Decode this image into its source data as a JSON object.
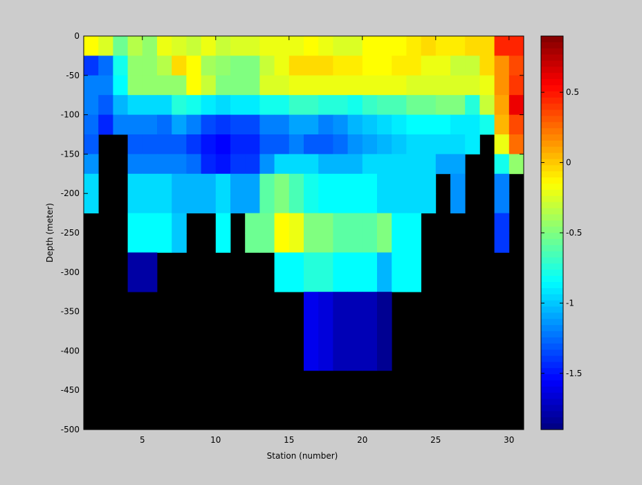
{
  "chart_data": {
    "type": "heatmap",
    "title": "",
    "xlabel": "Station (number)",
    "ylabel": "Depth (meter)",
    "xlim": [
      1,
      31
    ],
    "ylim": [
      -500,
      0
    ],
    "x_ticks": [
      5,
      10,
      15,
      20,
      25,
      30
    ],
    "y_ticks": [
      0,
      -50,
      -100,
      -150,
      -200,
      -250,
      -300,
      -350,
      -400,
      -450,
      -500
    ],
    "colorbar": {
      "range": [
        -1.9,
        0.9
      ],
      "ticks": [
        0.5,
        0,
        -0.5,
        -1,
        -1.5
      ],
      "colormap": "jet"
    },
    "no_data_color": "#000000",
    "grid": false,
    "x_stations": [
      1,
      2,
      3,
      4,
      5,
      6,
      7,
      8,
      9,
      10,
      11,
      12,
      13,
      14,
      15,
      16,
      17,
      18,
      19,
      20,
      21,
      22,
      23,
      24,
      25,
      26,
      27,
      28,
      29,
      30,
      31
    ],
    "depth_bins": [
      -5,
      -25,
      -50,
      -75,
      -100,
      -125,
      -150,
      -175,
      -200,
      -225,
      -250,
      -275,
      -300,
      -325,
      -350,
      -375,
      -400,
      -425,
      -450,
      -475,
      -500
    ],
    "values": [
      [
        -0.15,
        -0.25,
        -0.55,
        -0.35,
        -0.45,
        -0.2,
        -0.25,
        -0.3,
        -0.2,
        -0.3,
        -0.25,
        -0.25,
        -0.2,
        -0.2,
        -0.2,
        -0.15,
        -0.2,
        -0.25,
        -0.25,
        -0.15,
        -0.15,
        -0.15,
        -0.1,
        -0.05,
        -0.1,
        -0.1,
        -0.05,
        -0.05,
        0.45,
        0.45,
        0.45
      ],
      [
        -1.4,
        -1.25,
        -0.8,
        -0.45,
        -0.45,
        -0.35,
        -0.05,
        -0.15,
        -0.4,
        -0.45,
        -0.5,
        -0.5,
        -0.3,
        -0.2,
        -0.05,
        -0.05,
        -0.05,
        -0.1,
        -0.1,
        -0.15,
        -0.15,
        -0.1,
        -0.1,
        -0.2,
        -0.2,
        -0.3,
        -0.3,
        -0.05,
        0.15,
        0.35,
        0.45
      ],
      [
        -1.2,
        -1.2,
        -0.85,
        -0.45,
        -0.45,
        -0.45,
        -0.45,
        -0.15,
        -0.3,
        -0.5,
        -0.5,
        -0.5,
        -0.25,
        -0.25,
        -0.2,
        -0.2,
        -0.2,
        -0.2,
        -0.2,
        -0.2,
        -0.2,
        -0.2,
        -0.25,
        -0.25,
        -0.25,
        -0.25,
        -0.25,
        -0.2,
        0.15,
        0.4,
        0.4
      ],
      [
        -1.2,
        -1.3,
        -1.05,
        -0.95,
        -0.95,
        -0.95,
        -0.75,
        -0.8,
        -0.9,
        -0.95,
        -0.9,
        -0.9,
        -0.8,
        -0.8,
        -0.7,
        -0.7,
        -0.75,
        -0.75,
        -0.8,
        -0.7,
        -0.65,
        -0.65,
        -0.55,
        -0.55,
        -0.5,
        -0.5,
        -0.75,
        -0.3,
        0.1,
        0.6,
        0.5
      ],
      [
        -1.25,
        -1.45,
        -1.2,
        -1.2,
        -1.2,
        -1.25,
        -1.1,
        -1.2,
        -1.35,
        -1.4,
        -1.35,
        -1.35,
        -1.2,
        -1.2,
        -1.1,
        -1.1,
        -1.2,
        -1.15,
        -1.05,
        -1.0,
        -0.95,
        -0.9,
        -0.85,
        -0.85,
        -0.85,
        -0.9,
        -0.9,
        -0.8,
        0.05,
        0.35,
        0.9
      ],
      [
        -1.3,
        null,
        null,
        -1.3,
        -1.3,
        -1.3,
        -1.3,
        -1.4,
        -1.5,
        -1.55,
        -1.45,
        -1.45,
        -1.3,
        -1.3,
        -1.2,
        -1.3,
        -1.3,
        -1.25,
        -1.15,
        -1.1,
        -1.05,
        -1.0,
        -0.95,
        -0.95,
        -0.95,
        -0.95,
        -0.9,
        null,
        -0.2,
        0.25,
        -0.05
      ],
      [
        -1.15,
        null,
        null,
        -1.2,
        -1.2,
        -1.2,
        -1.2,
        -1.25,
        -1.45,
        -1.5,
        -1.4,
        -1.4,
        -1.15,
        -0.95,
        -0.95,
        -0.95,
        -1.05,
        -1.05,
        -1.05,
        -0.95,
        -0.95,
        -0.95,
        -0.95,
        -0.95,
        -1.1,
        -1.1,
        null,
        null,
        -0.8,
        -0.45,
        null
      ],
      [
        -0.95,
        null,
        null,
        -0.95,
        -0.95,
        -0.95,
        -1.05,
        -1.05,
        -1.05,
        -0.95,
        -1.1,
        -1.1,
        -0.6,
        -0.5,
        -0.65,
        -0.8,
        -0.85,
        -0.85,
        -0.85,
        -0.85,
        -0.95,
        -0.95,
        -0.95,
        -0.95,
        null,
        -1.15,
        null,
        null,
        -1.2,
        null,
        null
      ],
      [
        -0.95,
        null,
        null,
        -0.95,
        -0.95,
        -0.95,
        -1.05,
        -1.05,
        -1.05,
        -0.95,
        -1.1,
        -1.1,
        -0.6,
        -0.5,
        -0.65,
        -0.8,
        -0.85,
        -0.85,
        -0.85,
        -0.85,
        -0.95,
        -0.95,
        -0.95,
        -0.95,
        null,
        -1.15,
        null,
        null,
        -1.2,
        null,
        null
      ],
      [
        null,
        null,
        null,
        -0.85,
        -0.85,
        -0.85,
        -1.0,
        null,
        null,
        -0.85,
        null,
        -0.55,
        -0.55,
        -0.15,
        -0.2,
        -0.5,
        -0.5,
        -0.6,
        -0.6,
        -0.6,
        -0.5,
        -0.85,
        -0.85,
        null,
        null,
        null,
        null,
        null,
        -1.4,
        null,
        null
      ],
      [
        null,
        null,
        null,
        -0.85,
        -0.85,
        -0.85,
        -1.0,
        null,
        null,
        -0.85,
        null,
        -0.55,
        -0.55,
        -0.15,
        -0.2,
        -0.5,
        -0.5,
        -0.6,
        -0.6,
        -0.6,
        -0.5,
        -0.85,
        -0.85,
        null,
        null,
        null,
        null,
        null,
        -1.4,
        null,
        null
      ],
      [
        null,
        null,
        null,
        -1.8,
        -1.8,
        null,
        null,
        null,
        null,
        null,
        null,
        null,
        null,
        -0.85,
        -0.85,
        -0.75,
        -0.75,
        -0.85,
        -0.85,
        -0.85,
        -1.05,
        -0.85,
        -0.85,
        null,
        null,
        null,
        null,
        null,
        null,
        null,
        null
      ],
      [
        null,
        null,
        null,
        -1.8,
        -1.8,
        null,
        null,
        null,
        null,
        null,
        null,
        null,
        null,
        -0.85,
        -0.85,
        -0.75,
        -0.75,
        -0.85,
        -0.85,
        -0.85,
        -1.05,
        -0.85,
        -0.85,
        null,
        null,
        null,
        null,
        null,
        null,
        null,
        null
      ],
      [
        null,
        null,
        null,
        null,
        null,
        null,
        null,
        null,
        null,
        null,
        null,
        null,
        null,
        null,
        null,
        -1.6,
        -1.65,
        -1.75,
        -1.75,
        -1.75,
        -1.85,
        null,
        null,
        null,
        null,
        null,
        null,
        null,
        null,
        null,
        null
      ],
      [
        null,
        null,
        null,
        null,
        null,
        null,
        null,
        null,
        null,
        null,
        null,
        null,
        null,
        null,
        null,
        -1.6,
        -1.65,
        -1.75,
        -1.75,
        -1.75,
        -1.85,
        null,
        null,
        null,
        null,
        null,
        null,
        null,
        null,
        null,
        null
      ],
      [
        null,
        null,
        null,
        null,
        null,
        null,
        null,
        null,
        null,
        null,
        null,
        null,
        null,
        null,
        null,
        -1.6,
        -1.65,
        -1.75,
        -1.75,
        -1.75,
        -1.85,
        null,
        null,
        null,
        null,
        null,
        null,
        null,
        null,
        null,
        null
      ],
      [
        null,
        null,
        null,
        null,
        null,
        null,
        null,
        null,
        null,
        null,
        null,
        null,
        null,
        null,
        null,
        -1.6,
        -1.65,
        -1.75,
        -1.75,
        -1.75,
        -1.85,
        null,
        null,
        null,
        null,
        null,
        null,
        null,
        null,
        null,
        null
      ],
      [
        null,
        null,
        null,
        null,
        null,
        null,
        null,
        null,
        null,
        null,
        null,
        null,
        null,
        null,
        null,
        null,
        null,
        null,
        null,
        null,
        null,
        null,
        null,
        null,
        null,
        null,
        null,
        null,
        null,
        null,
        null
      ],
      [
        null,
        null,
        null,
        null,
        null,
        null,
        null,
        null,
        null,
        null,
        null,
        null,
        null,
        null,
        null,
        null,
        null,
        null,
        null,
        null,
        null,
        null,
        null,
        null,
        null,
        null,
        null,
        null,
        null,
        null,
        null
      ],
      [
        null,
        null,
        null,
        null,
        null,
        null,
        null,
        null,
        null,
        null,
        null,
        null,
        null,
        null,
        null,
        null,
        null,
        null,
        null,
        null,
        null,
        null,
        null,
        null,
        null,
        null,
        null,
        null,
        null,
        null,
        null
      ],
      [
        null,
        null,
        null,
        null,
        null,
        null,
        null,
        null,
        null,
        null,
        null,
        null,
        null,
        null,
        null,
        null,
        null,
        null,
        null,
        null,
        null,
        null,
        null,
        null,
        null,
        null,
        null,
        null,
        null,
        null,
        null
      ]
    ]
  }
}
